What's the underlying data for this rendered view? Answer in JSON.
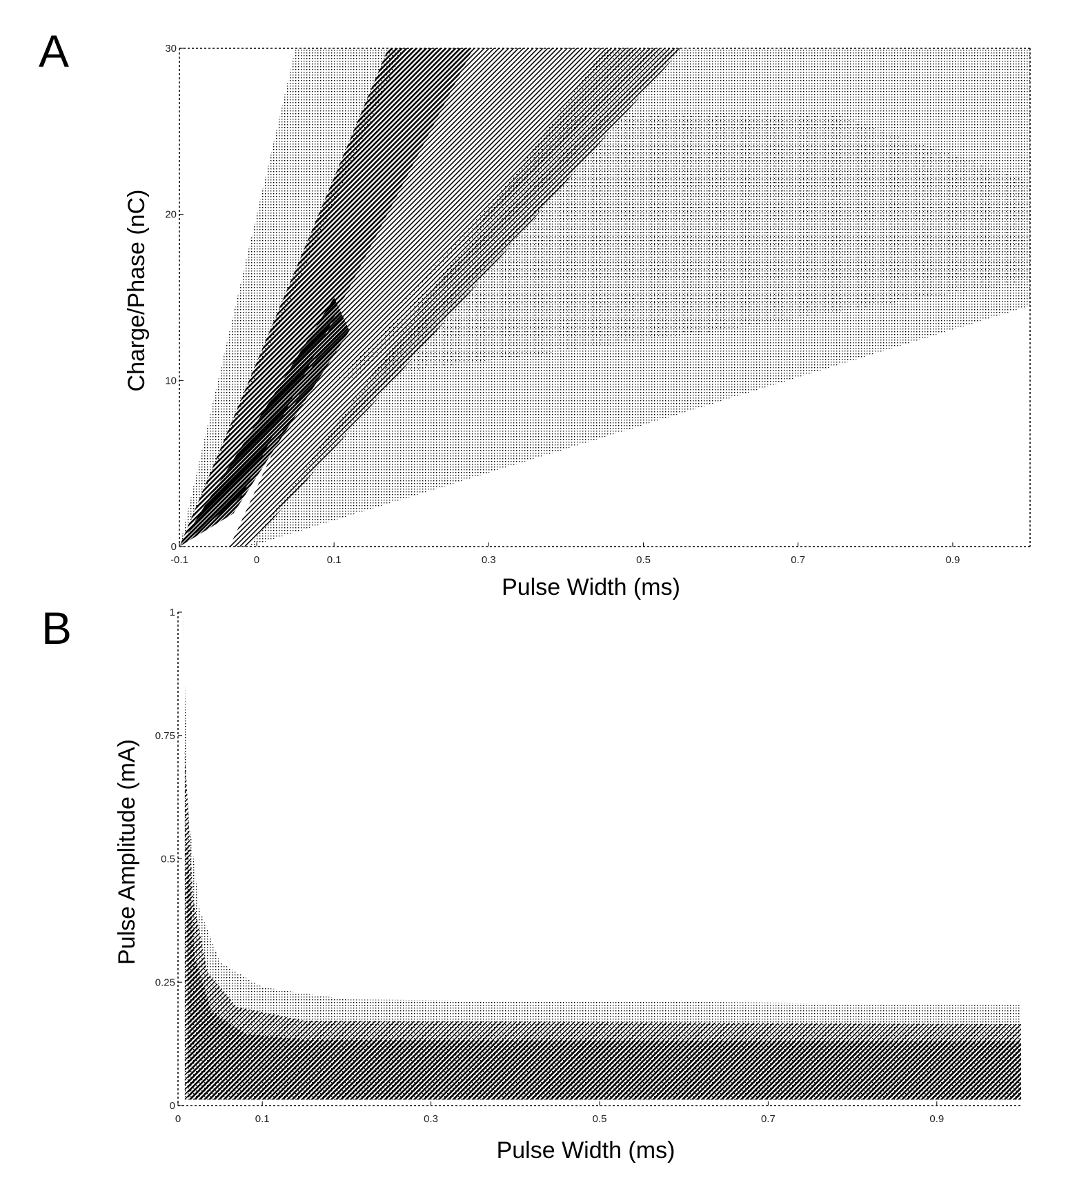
{
  "chart_data": [
    {
      "panel": "A",
      "type": "area",
      "xlabel": "Pulse Width (ms)",
      "ylabel": "Charge/Phase (nC)",
      "xlim": [
        -0.1,
        1.0
      ],
      "ylim": [
        0,
        30
      ],
      "xticks": [
        -0.1,
        0,
        0.1,
        0.3,
        0.5,
        0.7,
        0.9
      ],
      "xtick_labels": [
        "-0.1",
        "0",
        "0.1",
        "0.3",
        "0.5",
        "0.7",
        "0.9"
      ],
      "yticks": [
        0,
        10,
        20,
        30
      ],
      "ytick_labels": [
        "0",
        "10",
        "20",
        "30"
      ],
      "grid": false,
      "frame": "dotted",
      "regions": [
        {
          "shade": "light",
          "points": [
            [
              -0.1,
              0
            ],
            [
              0.05,
              30
            ],
            [
              0.19,
              30
            ]
          ]
        },
        {
          "shade": "light",
          "points": [
            [
              -0.01,
              0
            ],
            [
              0.45,
              30
            ],
            [
              1.0,
              30
            ],
            [
              1.0,
              14.5
            ]
          ]
        },
        {
          "shade": "lighter",
          "points": [
            [
              0.1,
              10
            ],
            [
              0.4,
              26
            ],
            [
              0.75,
              26
            ],
            [
              1.0,
              22
            ],
            [
              1.0,
              16
            ],
            [
              0.6,
              13
            ]
          ]
        },
        {
          "shade": "medium",
          "points": [
            [
              -0.035,
              0
            ],
            [
              0.26,
              30
            ],
            [
              0.55,
              30
            ],
            [
              -0.01,
              0
            ]
          ]
        },
        {
          "shade": "dark",
          "points": [
            [
              -0.1,
              0
            ],
            [
              0.17,
              30
            ],
            [
              0.28,
              30
            ],
            [
              -0.02,
              3
            ]
          ]
        },
        {
          "shade": "darkest",
          "points": [
            [
              -0.1,
              0
            ],
            [
              0.02,
              9
            ],
            [
              0.1,
              15
            ],
            [
              0.12,
              13
            ],
            [
              -0.03,
              2
            ]
          ]
        }
      ]
    },
    {
      "panel": "B",
      "type": "area",
      "xlabel": "Pulse Width (ms)",
      "ylabel": "Pulse Amplitude (mA)",
      "xlim": [
        0,
        1.0
      ],
      "ylim": [
        0,
        1
      ],
      "xticks": [
        0,
        0.1,
        0.3,
        0.5,
        0.7,
        0.9
      ],
      "xtick_labels": [
        "0",
        "0.1",
        "0.3",
        "0.5",
        "0.7",
        "0.9"
      ],
      "yticks": [
        0,
        0.25,
        0.5,
        0.75,
        1
      ],
      "ytick_labels": [
        "0",
        "0.25",
        "0.5",
        "0.75",
        "1"
      ],
      "grid": false,
      "frame": "dotted",
      "regions": [
        {
          "shade": "light",
          "points": [
            [
              0.006,
              1.0
            ],
            [
              0.012,
              0.6
            ],
            [
              0.025,
              0.4
            ],
            [
              0.05,
              0.29
            ],
            [
              0.1,
              0.24
            ],
            [
              0.2,
              0.215
            ],
            [
              1.0,
              0.205
            ],
            [
              1.0,
              0.012
            ],
            [
              0.008,
              0.012
            ]
          ]
        },
        {
          "shade": "medium",
          "points": [
            [
              0.008,
              0.72
            ],
            [
              0.018,
              0.42
            ],
            [
              0.035,
              0.27
            ],
            [
              0.07,
              0.2
            ],
            [
              0.15,
              0.172
            ],
            [
              1.0,
              0.165
            ],
            [
              1.0,
              0.012
            ],
            [
              0.008,
              0.012
            ]
          ]
        },
        {
          "shade": "dark",
          "points": [
            [
              0.01,
              0.55
            ],
            [
              0.02,
              0.3
            ],
            [
              0.04,
              0.19
            ],
            [
              0.08,
              0.145
            ],
            [
              0.15,
              0.133
            ],
            [
              1.0,
              0.13
            ],
            [
              1.0,
              0.012
            ],
            [
              0.012,
              0.012
            ]
          ]
        }
      ]
    }
  ],
  "colors": {
    "ink": "#000000",
    "background": "#ffffff"
  }
}
